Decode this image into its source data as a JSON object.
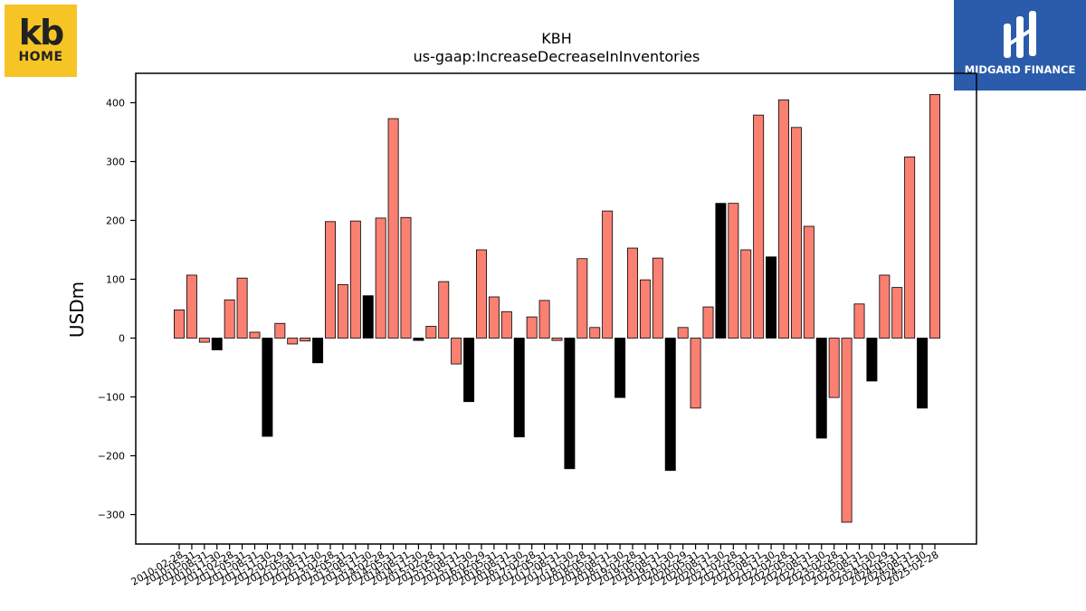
{
  "logos": {
    "kb": {
      "big": "kb",
      "small": "HOME",
      "color": "#f6c525"
    },
    "midgard": {
      "name": "MIDGARD FINANCE",
      "color": "#2a5cab"
    }
  },
  "chart_data": {
    "type": "bar",
    "title": "KBH",
    "subtitle": "us-gaap:IncreaseDecreaseInInventories",
    "xlabel": "",
    "ylabel": "USDm",
    "ylim": [
      -350,
      450
    ],
    "yticks": [
      -300,
      -200,
      -100,
      0,
      100,
      200,
      300,
      400
    ],
    "ytick_labels": [
      "−300",
      "−200",
      "−100",
      "0",
      "100",
      "200",
      "300",
      "400"
    ],
    "grid": false,
    "positive_color": "#fa8072",
    "negative_color": "#000000",
    "categories": [
      "2010-02-28",
      "2010-05-31",
      "2010-08-31",
      "2010-11-30",
      "2011-02-28",
      "2011-05-31",
      "2011-08-31",
      "2011-11-30",
      "2012-02-29",
      "2012-05-31",
      "2012-08-31",
      "2012-11-30",
      "2013-02-28",
      "2013-05-31",
      "2013-08-31",
      "2013-11-30",
      "2014-02-28",
      "2014-05-31",
      "2014-08-31",
      "2014-11-30",
      "2015-02-28",
      "2015-05-31",
      "2015-08-31",
      "2015-11-30",
      "2016-02-29",
      "2016-05-31",
      "2016-08-31",
      "2016-11-30",
      "2017-02-28",
      "2017-05-31",
      "2017-08-31",
      "2017-11-30",
      "2018-02-28",
      "2018-05-31",
      "2018-08-31",
      "2018-11-30",
      "2019-02-28",
      "2019-05-31",
      "2019-08-31",
      "2019-11-30",
      "2020-02-29",
      "2020-05-31",
      "2020-08-31",
      "2020-11-30",
      "2021-02-28",
      "2021-05-31",
      "2021-08-31",
      "2021-11-30",
      "2022-02-28",
      "2022-05-31",
      "2022-08-31",
      "2022-11-30",
      "2023-02-28",
      "2023-05-31",
      "2023-08-31",
      "2023-11-30",
      "2024-02-29",
      "2024-05-31",
      "2024-08-31",
      "2024-11-30",
      "2025-02-28"
    ],
    "values": [
      48,
      107,
      -7,
      -20,
      65,
      102,
      10,
      -167,
      25,
      -10,
      -5,
      -42,
      198,
      91,
      199,
      72,
      204,
      373,
      205,
      -4,
      20,
      96,
      -44,
      -108,
      150,
      70,
      45,
      -168,
      36,
      64,
      -4,
      -222,
      135,
      18,
      216,
      -101,
      153,
      99,
      136,
      -225,
      18,
      -119,
      53,
      229,
      229,
      150,
      379,
      138,
      405,
      358,
      190,
      -170,
      -101,
      -313,
      58,
      -73,
      107,
      86,
      308,
      -119,
      414
    ],
    "bar_colors": [
      "#fa8072",
      "#fa8072",
      "#fa8072",
      "#000000",
      "#fa8072",
      "#fa8072",
      "#fa8072",
      "#000000",
      "#fa8072",
      "#fa8072",
      "#fa8072",
      "#000000",
      "#fa8072",
      "#fa8072",
      "#fa8072",
      "#000000",
      "#fa8072",
      "#fa8072",
      "#fa8072",
      "#000000",
      "#fa8072",
      "#fa8072",
      "#fa8072",
      "#000000",
      "#fa8072",
      "#fa8072",
      "#fa8072",
      "#000000",
      "#fa8072",
      "#fa8072",
      "#fa8072",
      "#000000",
      "#fa8072",
      "#fa8072",
      "#fa8072",
      "#000000",
      "#fa8072",
      "#fa8072",
      "#fa8072",
      "#000000",
      "#fa8072",
      "#fa8072",
      "#fa8072",
      "#000000",
      "#fa8072",
      "#fa8072",
      "#fa8072",
      "#000000",
      "#fa8072",
      "#fa8072",
      "#fa8072",
      "#000000",
      "#fa8072",
      "#fa8072",
      "#fa8072",
      "#000000",
      "#fa8072",
      "#fa8072",
      "#fa8072",
      "#000000",
      "#fa8072"
    ]
  }
}
